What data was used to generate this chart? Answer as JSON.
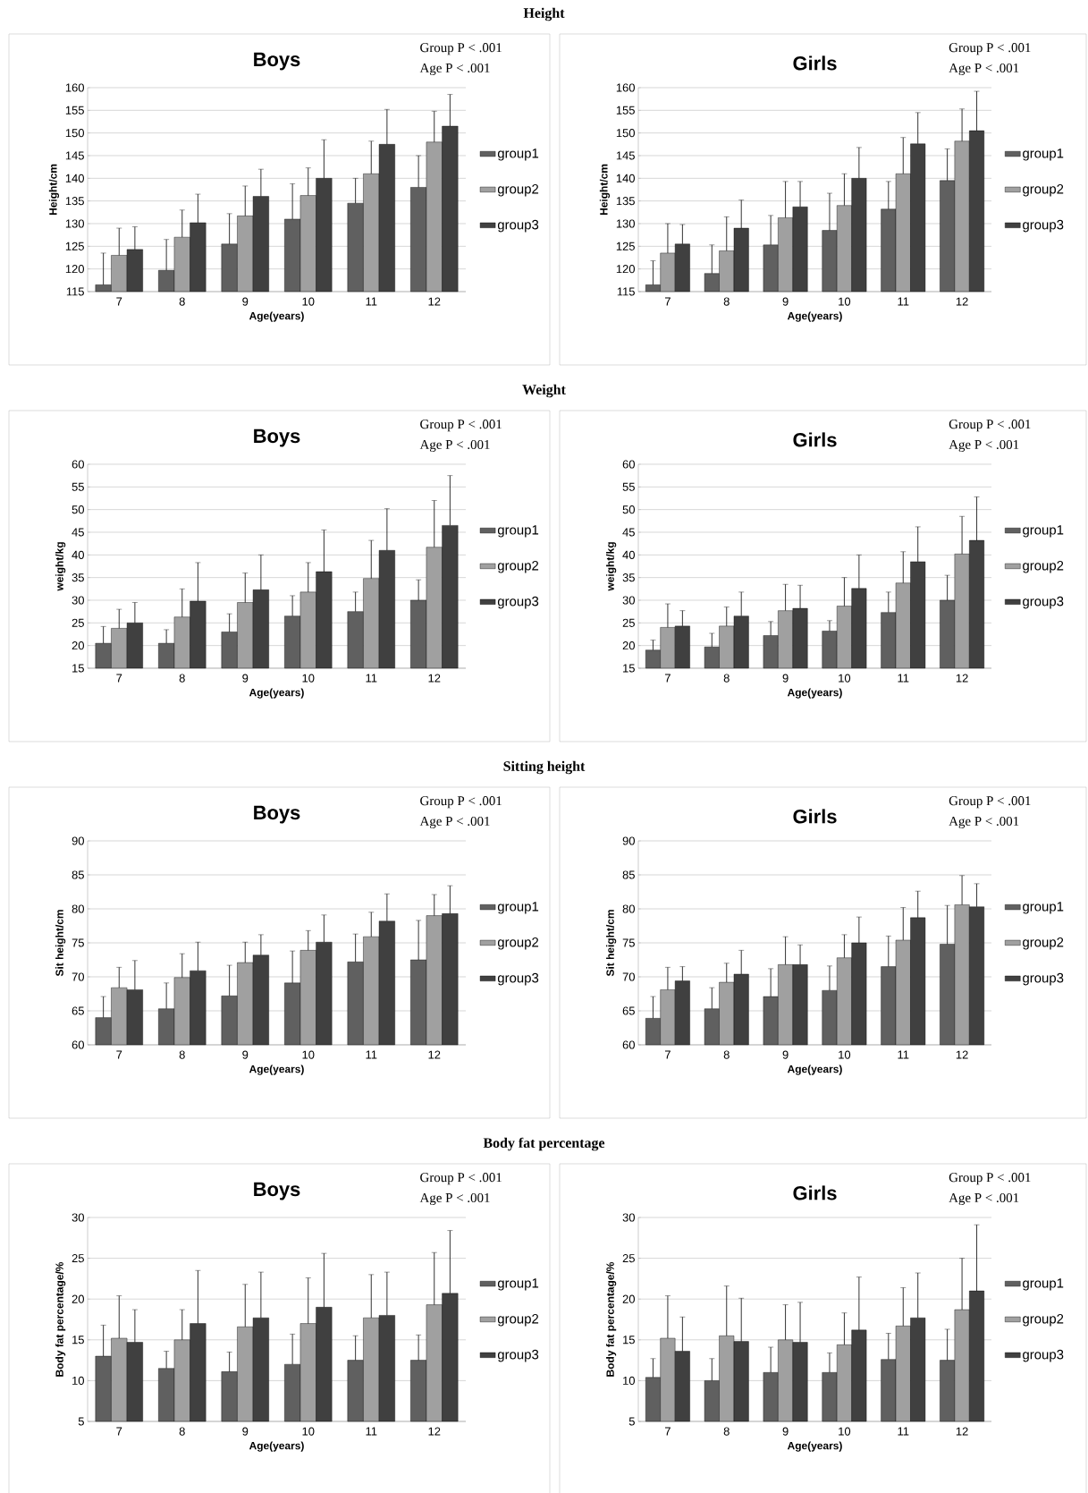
{
  "chart_data": [
    {
      "type": "other",
      "title": "Height"
    },
    {
      "type": "bar",
      "title": "Boys",
      "xlabel": "Age(years)",
      "ylabel": "Height/cm",
      "annotations": [
        "Group  P < .001",
        "Age  P < .001"
      ],
      "categories": [
        "7",
        "8",
        "9",
        "10",
        "11",
        "12"
      ],
      "ylim": [
        115,
        160
      ],
      "yticks": [
        115,
        120,
        125,
        130,
        135,
        140,
        145,
        150,
        155,
        160
      ],
      "grid": "y",
      "legend": "right",
      "series": [
        {
          "name": "group1",
          "color": "#606060",
          "values": [
            116.5,
            119.7,
            125.5,
            131,
            134.5,
            138
          ],
          "errors": [
            [
              116.5,
              123.5
            ],
            [
              119.7,
              126.5
            ],
            [
              125.5,
              132.2
            ],
            [
              131,
              138.8
            ],
            [
              134.5,
              140
            ],
            [
              138,
              145
            ]
          ]
        },
        {
          "name": "group2",
          "color": "#a0a0a0",
          "values": [
            123,
            127,
            131.7,
            136.2,
            141,
            148
          ],
          "errors": [
            [
              123,
              129
            ],
            [
              127,
              133
            ],
            [
              131.7,
              138.3
            ],
            [
              136.2,
              142.3
            ],
            [
              141,
              148.2
            ],
            [
              148,
              154.8
            ]
          ]
        },
        {
          "name": "group3",
          "color": "#404040",
          "values": [
            124.3,
            130.2,
            136,
            140,
            147.5,
            151.5
          ],
          "errors": [
            [
              124.3,
              129.3
            ],
            [
              130.2,
              136.5
            ],
            [
              136,
              142
            ],
            [
              140,
              148.5
            ],
            [
              147.5,
              155.2
            ],
            [
              151.5,
              158.5
            ]
          ]
        }
      ]
    },
    {
      "type": "bar",
      "title": "Girls",
      "xlabel": "Age(years)",
      "ylabel": "Height/cm",
      "annotations": [
        "Group  P < .001",
        "Age  P < .001"
      ],
      "categories": [
        "7",
        "8",
        "9",
        "10",
        "11",
        "12"
      ],
      "ylim": [
        115,
        160
      ],
      "yticks": [
        115,
        120,
        125,
        130,
        135,
        140,
        145,
        150,
        155,
        160
      ],
      "grid": "y",
      "legend": "right",
      "series": [
        {
          "name": "group1",
          "color": "#606060",
          "values": [
            116.5,
            119,
            125.3,
            128.5,
            133.2,
            139.5
          ],
          "errors": [
            [
              116.5,
              121.8
            ],
            [
              119,
              125.3
            ],
            [
              125.3,
              131.8
            ],
            [
              128.5,
              136.7
            ],
            [
              133.2,
              139.3
            ],
            [
              139.5,
              146.5
            ]
          ]
        },
        {
          "name": "group2",
          "color": "#a0a0a0",
          "values": [
            123.5,
            124,
            131.3,
            134,
            141,
            148.2
          ],
          "errors": [
            [
              123.5,
              130
            ],
            [
              124,
              131.5
            ],
            [
              131.3,
              139.3
            ],
            [
              134,
              141
            ],
            [
              141,
              149
            ],
            [
              148.2,
              155.3
            ]
          ]
        },
        {
          "name": "group3",
          "color": "#404040",
          "values": [
            125.5,
            129,
            133.7,
            140,
            147.6,
            150.5
          ],
          "errors": [
            [
              125.5,
              129.8
            ],
            [
              129,
              135.2
            ],
            [
              133.7,
              139.3
            ],
            [
              140,
              146.8
            ],
            [
              147.6,
              154.5
            ],
            [
              150.5,
              159.2
            ]
          ]
        }
      ]
    },
    {
      "type": "other",
      "title": "Weight"
    },
    {
      "type": "bar",
      "title": "Boys",
      "xlabel": "Age(years)",
      "ylabel": "weight/kg",
      "annotations": [
        "Group  P < .001",
        "Age  P < .001"
      ],
      "categories": [
        "7",
        "8",
        "9",
        "10",
        "11",
        "12"
      ],
      "ylim": [
        15,
        60
      ],
      "yticks": [
        15,
        20,
        25,
        30,
        35,
        40,
        45,
        50,
        55,
        60
      ],
      "grid": "y",
      "legend": "right",
      "series": [
        {
          "name": "group1",
          "color": "#606060",
          "values": [
            20.5,
            20.5,
            23,
            26.5,
            27.5,
            30
          ],
          "errors": [
            [
              20.5,
              24.2
            ],
            [
              20.5,
              23.5
            ],
            [
              23,
              27
            ],
            [
              26.5,
              31
            ],
            [
              27.5,
              31.8
            ],
            [
              30,
              34.5
            ]
          ]
        },
        {
          "name": "group2",
          "color": "#a0a0a0",
          "values": [
            23.8,
            26.3,
            29.5,
            31.8,
            34.8,
            41.7
          ],
          "errors": [
            [
              23.8,
              28
            ],
            [
              26.3,
              32.5
            ],
            [
              29.5,
              36
            ],
            [
              31.8,
              38.3
            ],
            [
              34.8,
              43.2
            ],
            [
              41.7,
              52
            ]
          ]
        },
        {
          "name": "group3",
          "color": "#404040",
          "values": [
            25,
            29.8,
            32.3,
            36.3,
            41,
            46.5
          ],
          "errors": [
            [
              25,
              29.5
            ],
            [
              29.8,
              38.3
            ],
            [
              32.3,
              40
            ],
            [
              36.3,
              45.5
            ],
            [
              41,
              50.2
            ],
            [
              46.5,
              57.5
            ]
          ]
        }
      ]
    },
    {
      "type": "bar",
      "title": "Girls",
      "xlabel": "Age(years)",
      "ylabel": "weight/kg",
      "annotations": [
        "Group  P < .001",
        "Age  P < .001"
      ],
      "categories": [
        "7",
        "8",
        "9",
        "10",
        "11",
        "12"
      ],
      "ylim": [
        15,
        60
      ],
      "yticks": [
        15,
        20,
        25,
        30,
        35,
        40,
        45,
        50,
        55,
        60
      ],
      "grid": "y",
      "legend": "right",
      "series": [
        {
          "name": "group1",
          "color": "#606060",
          "values": [
            19,
            19.7,
            22.2,
            23.2,
            27.3,
            30
          ],
          "errors": [
            [
              19,
              21.2
            ],
            [
              19.7,
              22.7
            ],
            [
              22.2,
              25.3
            ],
            [
              23.2,
              25.5
            ],
            [
              27.3,
              31.8
            ],
            [
              30,
              35.5
            ]
          ]
        },
        {
          "name": "group2",
          "color": "#a0a0a0",
          "values": [
            24,
            24.3,
            27.7,
            28.7,
            33.8,
            40.2
          ],
          "errors": [
            [
              24,
              29.2
            ],
            [
              24.3,
              28.5
            ],
            [
              27.7,
              33.5
            ],
            [
              28.7,
              35
            ],
            [
              33.8,
              40.7
            ],
            [
              40.2,
              48.5
            ]
          ]
        },
        {
          "name": "group3",
          "color": "#404040",
          "values": [
            24.3,
            26.5,
            28.2,
            32.6,
            38.5,
            43.2
          ],
          "errors": [
            [
              24.3,
              27.7
            ],
            [
              26.5,
              31.8
            ],
            [
              28.2,
              33.3
            ],
            [
              32.6,
              40
            ],
            [
              38.5,
              46.2
            ],
            [
              43.2,
              52.8
            ]
          ]
        }
      ]
    },
    {
      "type": "other",
      "title": "Sitting height"
    },
    {
      "type": "bar",
      "title": "Boys",
      "xlabel": "Age(years)",
      "ylabel": "Sit height/cm",
      "annotations": [
        "Group  P < .001",
        "Age  P < .001"
      ],
      "categories": [
        "7",
        "8",
        "9",
        "10",
        "11",
        "12"
      ],
      "ylim": [
        60,
        90
      ],
      "yticks": [
        60,
        65,
        70,
        75,
        80,
        85,
        90
      ],
      "grid": "y",
      "legend": "right",
      "series": [
        {
          "name": "group1",
          "color": "#606060",
          "values": [
            64,
            65.3,
            67.2,
            69.1,
            72.2,
            72.5
          ],
          "errors": [
            [
              64,
              67.1
            ],
            [
              65.3,
              69.1
            ],
            [
              67.2,
              71.7
            ],
            [
              69.1,
              73.8
            ],
            [
              72.2,
              76.3
            ],
            [
              72.5,
              78.3
            ]
          ]
        },
        {
          "name": "group2",
          "color": "#a0a0a0",
          "values": [
            68.4,
            69.9,
            72.1,
            73.9,
            75.9,
            79
          ],
          "errors": [
            [
              68.4,
              71.4
            ],
            [
              69.9,
              73.4
            ],
            [
              72.1,
              75.1
            ],
            [
              73.9,
              76.8
            ],
            [
              75.9,
              79.5
            ],
            [
              79,
              82.1
            ]
          ]
        },
        {
          "name": "group3",
          "color": "#404040",
          "values": [
            68.1,
            70.9,
            73.2,
            75.1,
            78.2,
            79.3
          ],
          "errors": [
            [
              68.1,
              72.4
            ],
            [
              70.9,
              75.1
            ],
            [
              73.2,
              76.2
            ],
            [
              75.1,
              79.1
            ],
            [
              78.2,
              82.2
            ],
            [
              79.3,
              83.4
            ]
          ]
        }
      ]
    },
    {
      "type": "bar",
      "title": "Girls",
      "xlabel": "Age(years)",
      "ylabel": "Sit height/cm",
      "annotations": [
        "Group  P < .001",
        "Age  P < .001"
      ],
      "categories": [
        "7",
        "8",
        "9",
        "10",
        "11",
        "12"
      ],
      "ylim": [
        60,
        90
      ],
      "yticks": [
        60,
        65,
        70,
        75,
        80,
        85,
        90
      ],
      "grid": "y",
      "legend": "right",
      "series": [
        {
          "name": "group1",
          "color": "#606060",
          "values": [
            63.9,
            65.3,
            67.1,
            68,
            71.5,
            74.8
          ],
          "errors": [
            [
              63.9,
              67.1
            ],
            [
              65.3,
              68.4
            ],
            [
              67.1,
              71.2
            ],
            [
              68,
              71.6
            ],
            [
              71.5,
              76
            ],
            [
              74.8,
              80.5
            ]
          ]
        },
        {
          "name": "group2",
          "color": "#a0a0a0",
          "values": [
            68.1,
            69.2,
            71.8,
            72.8,
            75.4,
            80.6
          ],
          "errors": [
            [
              68.1,
              71.4
            ],
            [
              69.2,
              72
            ],
            [
              71.8,
              75.9
            ],
            [
              72.8,
              76.2
            ],
            [
              75.4,
              80.2
            ],
            [
              80.6,
              84.9
            ]
          ]
        },
        {
          "name": "group3",
          "color": "#404040",
          "values": [
            69.4,
            70.4,
            71.8,
            75,
            78.7,
            80.3
          ],
          "errors": [
            [
              69.4,
              71.5
            ],
            [
              70.4,
              73.9
            ],
            [
              71.8,
              74.7
            ],
            [
              75,
              78.8
            ],
            [
              78.7,
              82.6
            ],
            [
              80.3,
              83.7
            ]
          ]
        }
      ]
    },
    {
      "type": "other",
      "title": "Body fat percentage"
    },
    {
      "type": "bar",
      "title": "Boys",
      "xlabel": "Age(years)",
      "ylabel": "Body fat  percentage/%",
      "annotations": [
        "Group  P < .001",
        "Age  P < .001"
      ],
      "categories": [
        "7",
        "8",
        "9",
        "10",
        "11",
        "12"
      ],
      "ylim": [
        5,
        30
      ],
      "yticks": [
        5,
        10,
        15,
        20,
        25,
        30
      ],
      "grid": "y",
      "legend": "right",
      "series": [
        {
          "name": "group1",
          "color": "#606060",
          "values": [
            13,
            11.5,
            11.1,
            12,
            12.5,
            12.5
          ],
          "errors": [
            [
              13,
              16.8
            ],
            [
              11.5,
              13.6
            ],
            [
              11.1,
              13.5
            ],
            [
              12,
              15.7
            ],
            [
              12.5,
              15.5
            ],
            [
              12.5,
              15.6
            ]
          ]
        },
        {
          "name": "group2",
          "color": "#a0a0a0",
          "values": [
            15.2,
            15,
            16.6,
            17,
            17.7,
            19.3
          ],
          "errors": [
            [
              15.2,
              20.4
            ],
            [
              15,
              18.7
            ],
            [
              16.6,
              21.8
            ],
            [
              17,
              22.6
            ],
            [
              17.7,
              23
            ],
            [
              19.3,
              25.7
            ]
          ]
        },
        {
          "name": "group3",
          "color": "#404040",
          "values": [
            14.7,
            17,
            17.7,
            19,
            18,
            20.7
          ],
          "errors": [
            [
              14.7,
              18.7
            ],
            [
              17,
              23.5
            ],
            [
              17.7,
              23.3
            ],
            [
              19,
              25.6
            ],
            [
              18,
              23.3
            ],
            [
              20.7,
              28.4
            ]
          ]
        }
      ]
    },
    {
      "type": "bar",
      "title": "Girls",
      "xlabel": "Age(years)",
      "ylabel": "Body fat  percentage/%",
      "annotations": [
        "Group  P < .001",
        "Age  P < .001"
      ],
      "categories": [
        "7",
        "8",
        "9",
        "10",
        "11",
        "12"
      ],
      "ylim": [
        5,
        30
      ],
      "yticks": [
        5,
        10,
        15,
        20,
        25,
        30
      ],
      "grid": "y",
      "legend": "right",
      "series": [
        {
          "name": "group1",
          "color": "#606060",
          "values": [
            10.4,
            10,
            11,
            11,
            12.6,
            12.5
          ],
          "errors": [
            [
              10.4,
              12.7
            ],
            [
              10,
              12.7
            ],
            [
              11,
              14.1
            ],
            [
              11,
              13.4
            ],
            [
              12.6,
              15.8
            ],
            [
              12.5,
              16.3
            ]
          ]
        },
        {
          "name": "group2",
          "color": "#a0a0a0",
          "values": [
            15.2,
            15.5,
            15,
            14.4,
            16.7,
            18.7
          ],
          "errors": [
            [
              15.2,
              20.4
            ],
            [
              15.5,
              21.6
            ],
            [
              15,
              19.3
            ],
            [
              14.4,
              18.3
            ],
            [
              16.7,
              21.4
            ],
            [
              18.7,
              25
            ]
          ]
        },
        {
          "name": "group3",
          "color": "#404040",
          "values": [
            13.6,
            14.8,
            14.7,
            16.2,
            17.7,
            21
          ],
          "errors": [
            [
              13.6,
              17.8
            ],
            [
              14.8,
              20.1
            ],
            [
              14.7,
              19.6
            ],
            [
              16.2,
              22.7
            ],
            [
              17.7,
              23.2
            ],
            [
              21,
              29.1
            ]
          ]
        }
      ]
    }
  ]
}
